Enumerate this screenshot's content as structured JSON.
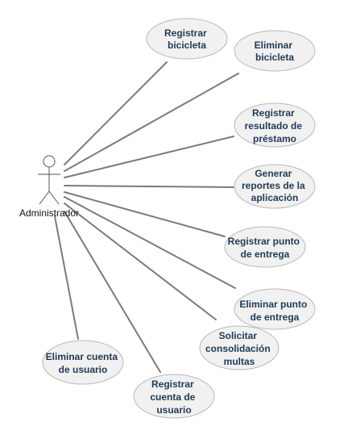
{
  "actor": {
    "label": "Administrador"
  },
  "use_cases": [
    {
      "id": "registrar-bicicleta",
      "lines": [
        "Registrar",
        "bicicleta"
      ]
    },
    {
      "id": "eliminar-bicicleta",
      "lines": [
        "Eliminar",
        "bicicleta"
      ]
    },
    {
      "id": "registrar-resultado-prestamo",
      "lines": [
        "Registrar",
        "resultado de",
        "préstamo"
      ]
    },
    {
      "id": "generar-reportes",
      "lines": [
        "Generar",
        "reportes de la",
        "aplicación"
      ]
    },
    {
      "id": "registrar-punto-entrega",
      "lines": [
        "Registrar punto",
        "de entrega"
      ]
    },
    {
      "id": "eliminar-punto-entrega",
      "lines": [
        "Eliminar punto",
        "de entrega"
      ]
    },
    {
      "id": "solicitar-consolidacion-multas",
      "lines": [
        "Solicitar",
        "consolidación",
        "multas"
      ]
    },
    {
      "id": "registrar-cuenta-usuario",
      "lines": [
        "Registrar",
        "cuenta de",
        "usuario"
      ]
    },
    {
      "id": "eliminar-cuenta-usuario",
      "lines": [
        "Eliminar cuenta",
        "de usuario"
      ]
    }
  ]
}
